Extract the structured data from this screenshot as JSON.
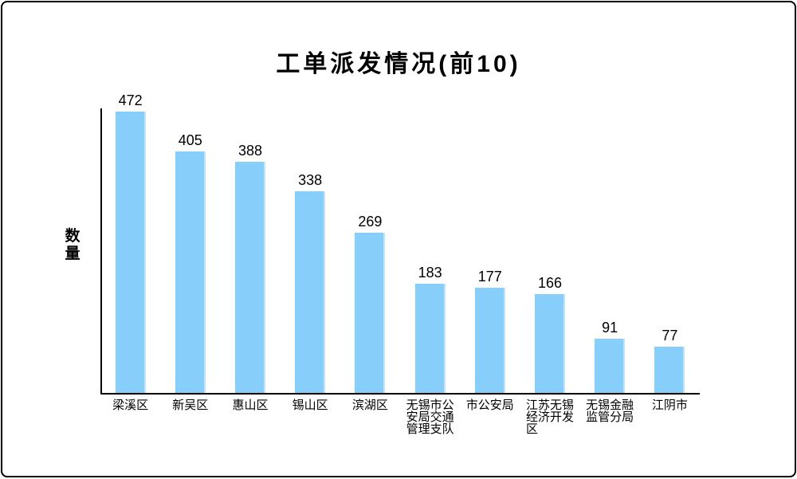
{
  "chart_data": {
    "type": "bar",
    "title": "工单派发情况(前10)",
    "ylabel": "数量",
    "xlabel": "",
    "legend": false,
    "grid": false,
    "ylim": [
      0,
      476
    ],
    "categories": [
      "梁溪区",
      "新吴区",
      "惠山区",
      "锡山区",
      "滨湖区",
      "无锡市公安局交通管理支队",
      "市公安局",
      "江苏无锡经济开发区",
      "无锡金融监管分局",
      "江阴市"
    ],
    "category_lines": [
      [
        "梁溪区"
      ],
      [
        "新吴区"
      ],
      [
        "惠山区"
      ],
      [
        "锡山区"
      ],
      [
        "滨湖区"
      ],
      [
        "无锡市公",
        "安局交通",
        "管理支队"
      ],
      [
        "市公安局"
      ],
      [
        "江苏无锡",
        "经济开发",
        "区"
      ],
      [
        "无锡金融",
        "监管分局"
      ],
      [
        "江阴市"
      ]
    ],
    "values": [
      472,
      405,
      388,
      338,
      269,
      183,
      177,
      166,
      91,
      77
    ],
    "bar_color": "#87CEFA",
    "axis_color": "#000000",
    "text_color": "#000000",
    "background_color": "#FFFFFF"
  }
}
